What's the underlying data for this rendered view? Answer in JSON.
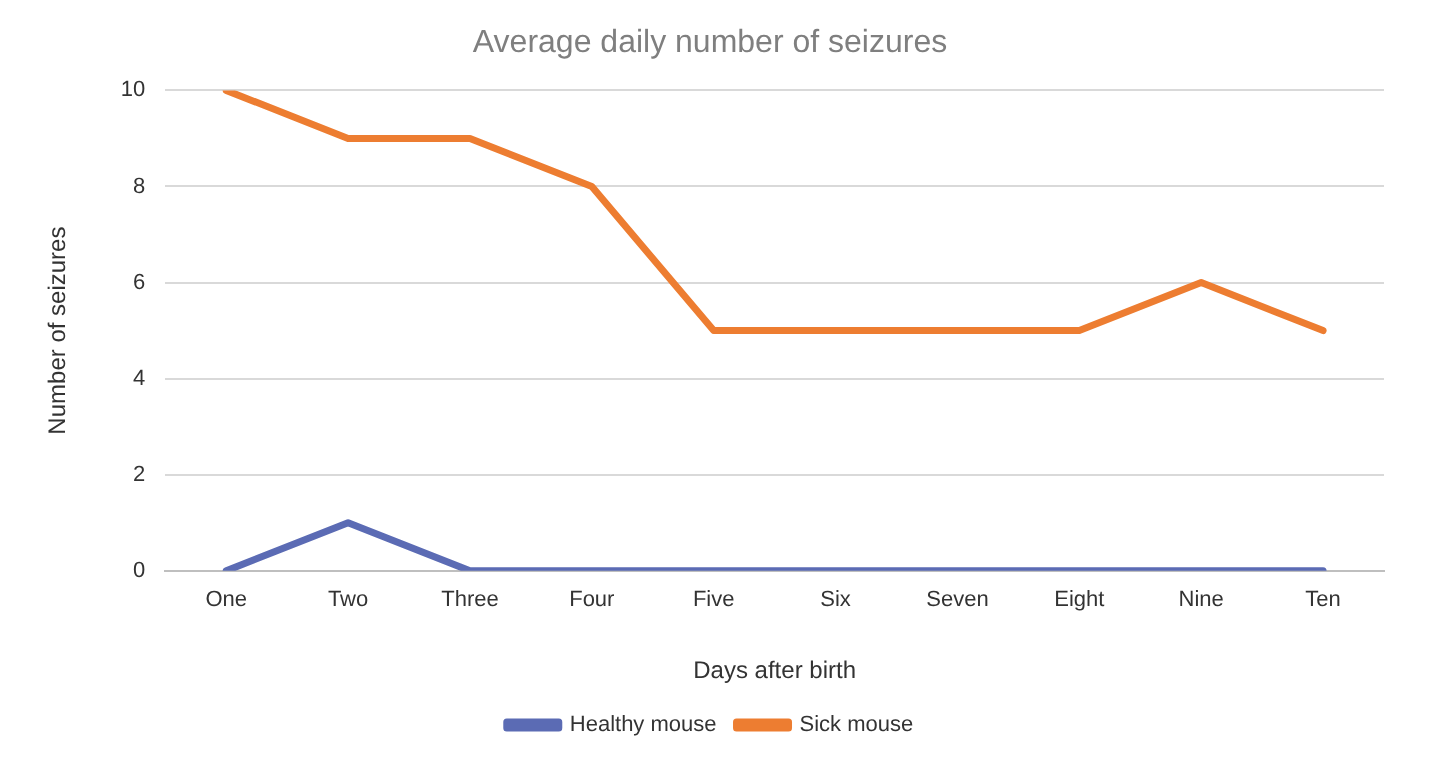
{
  "chart_data": {
    "type": "line",
    "title": "Average daily number of seizures",
    "xlabel": "Days after birth",
    "ylabel": "Number of seizures",
    "categories": [
      "One",
      "Two",
      "Three",
      "Four",
      "Five",
      "Six",
      "Seven",
      "Eight",
      "Nine",
      "Ten"
    ],
    "series": [
      {
        "name": "Healthy mouse",
        "color": "#5b6bb4",
        "values": [
          0,
          1,
          0,
          0,
          0,
          0,
          0,
          0,
          0,
          0
        ]
      },
      {
        "name": "Sick mouse",
        "color": "#ed7d31",
        "values": [
          10,
          9,
          9,
          8,
          5,
          5,
          5,
          5,
          6,
          5
        ]
      }
    ],
    "ylim": [
      0,
      10
    ],
    "yticks": [
      0,
      2,
      4,
      6,
      8,
      10
    ],
    "grid": "y",
    "legend": "bottom",
    "marker": "none",
    "line_style": "solid"
  }
}
